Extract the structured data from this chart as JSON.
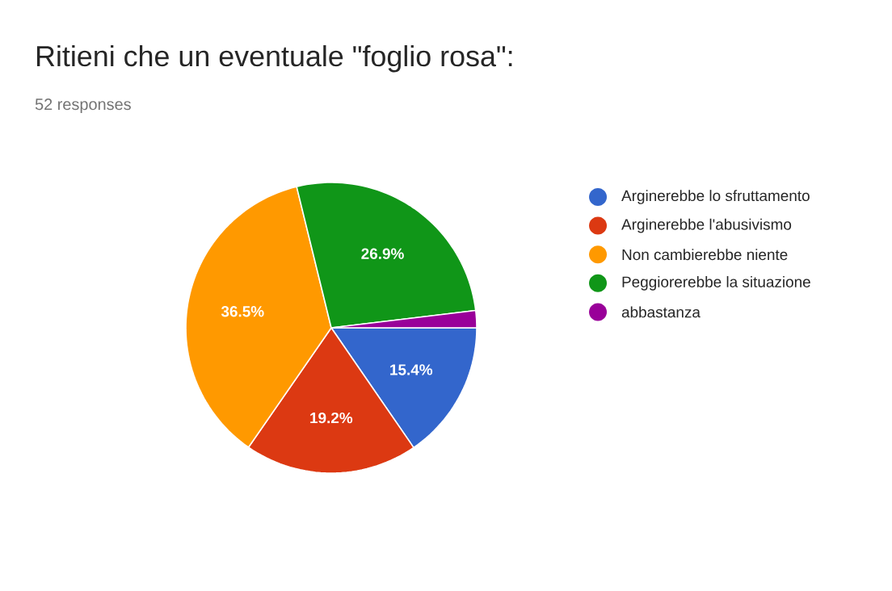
{
  "chart_data": {
    "type": "pie",
    "title": "Ritieni che un eventuale \"foglio rosa\":",
    "subtitle": "52 responses",
    "categories": [
      "Arginerebbe lo sfruttamento",
      "Arginerebbe l'abusivismo",
      "Non cambierebbe niente",
      "Peggiorerebbe la situazione",
      "abbastanza"
    ],
    "values": [
      15.4,
      19.2,
      36.5,
      26.9,
      1.9
    ],
    "colors": [
      "#3366cc",
      "#dc3912",
      "#ff9900",
      "#109618",
      "#990099"
    ],
    "value_labels": [
      "15.4%",
      "19.2%",
      "36.5%",
      "26.9%",
      null
    ],
    "legend": "right"
  }
}
